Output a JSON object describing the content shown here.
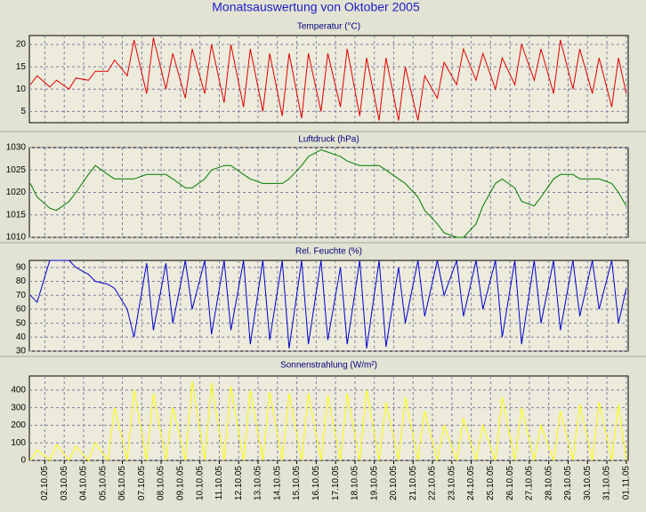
{
  "title": "Monatsauswertung von Oktober 2005",
  "x": [
    1.25,
    1.6,
    2.25,
    2.6,
    3.25,
    3.6,
    4.25,
    4.6,
    5.25,
    5.6,
    6.25,
    6.6,
    7.25,
    7.6,
    8.25,
    8.6,
    9.25,
    9.6,
    10.25,
    10.6,
    11.25,
    11.6,
    12.25,
    12.6,
    13.25,
    13.6,
    14.25,
    14.6,
    15.25,
    15.6,
    16.25,
    16.6,
    17.25,
    17.6,
    18.25,
    18.6,
    19.25,
    19.6,
    20.25,
    20.6,
    21.25,
    21.6,
    22.25,
    22.6,
    23.25,
    23.6,
    24.25,
    24.6,
    25.25,
    25.6,
    26.25,
    26.6,
    27.25,
    27.6,
    28.25,
    28.6,
    29.25,
    29.6,
    30.25,
    30.6,
    31.25,
    31.6,
    32.0
  ],
  "xlim": [
    1.2,
    32.1
  ],
  "xticks": [
    {
      "value": 2,
      "label": "02.10.05"
    },
    {
      "value": 3,
      "label": "03.10.05"
    },
    {
      "value": 4,
      "label": "04.10.05"
    },
    {
      "value": 5,
      "label": "05.10.05"
    },
    {
      "value": 6,
      "label": "06.10.05"
    },
    {
      "value": 7,
      "label": "07.10.05"
    },
    {
      "value": 8,
      "label": "08.10.05"
    },
    {
      "value": 9,
      "label": "09.10.05"
    },
    {
      "value": 10,
      "label": "10.10.05"
    },
    {
      "value": 11,
      "label": "11.10.05"
    },
    {
      "value": 12,
      "label": "12.10.05"
    },
    {
      "value": 13,
      "label": "13.10.05"
    },
    {
      "value": 14,
      "label": "14.10.05"
    },
    {
      "value": 15,
      "label": "15.10.05"
    },
    {
      "value": 16,
      "label": "16.10.05"
    },
    {
      "value": 17,
      "label": "17.10.05"
    },
    {
      "value": 18,
      "label": "18.10.05"
    },
    {
      "value": 19,
      "label": "19.10.05"
    },
    {
      "value": 20,
      "label": "20.10.05"
    },
    {
      "value": 21,
      "label": "21.10.05"
    },
    {
      "value": 22,
      "label": "22.10.05"
    },
    {
      "value": 23,
      "label": "23.10.05"
    },
    {
      "value": 24,
      "label": "24.10.05"
    },
    {
      "value": 25,
      "label": "25.10.05"
    },
    {
      "value": 26,
      "label": "26.10.05"
    },
    {
      "value": 27,
      "label": "27.10.05"
    },
    {
      "value": 28,
      "label": "28.10.05"
    },
    {
      "value": 29,
      "label": "29.10.05"
    },
    {
      "value": 30,
      "label": "30.10.05"
    },
    {
      "value": 31,
      "label": "31.10.05"
    },
    {
      "value": 32,
      "label": "01.11.05"
    }
  ],
  "chart_data": [
    {
      "type": "line",
      "title": "Temperatur (°C)",
      "color": "#e00000",
      "grid": true,
      "ylim": [
        2.5,
        22
      ],
      "yticks": [
        5,
        10,
        15,
        20
      ],
      "values": [
        11,
        13,
        10.5,
        12,
        10,
        12.5,
        12,
        14,
        14,
        16.5,
        13,
        21,
        9,
        21.5,
        10,
        18,
        8,
        19,
        9,
        20,
        7,
        20,
        6,
        19,
        5,
        18,
        4,
        18,
        3.5,
        18,
        5,
        18,
        6,
        19,
        4,
        17,
        3,
        17,
        3,
        15,
        3,
        13,
        8,
        16,
        11,
        19,
        12,
        18,
        10,
        17,
        11,
        20,
        12,
        19,
        9,
        21,
        10,
        19,
        9,
        17,
        6,
        17,
        9
      ]
    },
    {
      "type": "line",
      "title": "Luftdruck (hPa)",
      "color": "#007a00",
      "grid": true,
      "ylim": [
        1010,
        1030
      ],
      "yticks": [
        1010,
        1015,
        1020,
        1025,
        1030
      ],
      "values": [
        1022,
        1019,
        1016.5,
        1016,
        1018,
        1020,
        1024,
        1026,
        1024,
        1023,
        1023,
        1023,
        1024,
        1024,
        1024,
        1023,
        1021,
        1021,
        1023,
        1025,
        1026,
        1026,
        1024,
        1023,
        1022,
        1022,
        1022,
        1023,
        1026,
        1028,
        1029.5,
        1029,
        1028,
        1027,
        1026,
        1026,
        1026,
        1025,
        1023,
        1022,
        1019,
        1016,
        1013,
        1011,
        1010,
        1010,
        1013,
        1017,
        1022,
        1023,
        1021,
        1018,
        1017,
        1019,
        1023,
        1024,
        1024,
        1023,
        1023,
        1023,
        1022,
        1020,
        1017
      ]
    },
    {
      "type": "line",
      "title": "Rel. Feuchte (%)",
      "color": "#0000cc",
      "grid": true,
      "ylim": [
        30,
        95
      ],
      "yticks": [
        30,
        40,
        50,
        60,
        70,
        80,
        90
      ],
      "values": [
        70,
        65,
        95,
        95,
        95,
        90,
        85,
        80,
        78,
        75,
        60,
        40,
        93,
        45,
        93,
        50,
        95,
        60,
        95,
        42,
        95,
        45,
        95,
        35,
        95,
        38,
        95,
        32,
        95,
        35,
        95,
        38,
        90,
        35,
        95,
        32,
        95,
        33,
        90,
        50,
        95,
        55,
        95,
        70,
        95,
        55,
        95,
        60,
        95,
        40,
        95,
        35,
        95,
        50,
        95,
        45,
        95,
        55,
        95,
        60,
        95,
        50,
        75
      ]
    },
    {
      "type": "line",
      "title": "Sonnenstrahlung (W/m²)",
      "color": "#ffff00",
      "grid": true,
      "ylim": [
        0,
        480
      ],
      "yticks": [
        0,
        100,
        200,
        300,
        400
      ],
      "values": [
        0,
        60,
        0,
        90,
        0,
        80,
        0,
        100,
        0,
        300,
        0,
        400,
        0,
        380,
        0,
        300,
        0,
        450,
        0,
        440,
        0,
        420,
        0,
        400,
        0,
        390,
        0,
        380,
        0,
        380,
        0,
        370,
        0,
        380,
        0,
        400,
        0,
        330,
        0,
        360,
        0,
        280,
        0,
        200,
        0,
        240,
        0,
        200,
        0,
        360,
        0,
        300,
        0,
        200,
        0,
        280,
        0,
        320,
        0,
        330,
        0,
        320,
        0
      ]
    }
  ]
}
